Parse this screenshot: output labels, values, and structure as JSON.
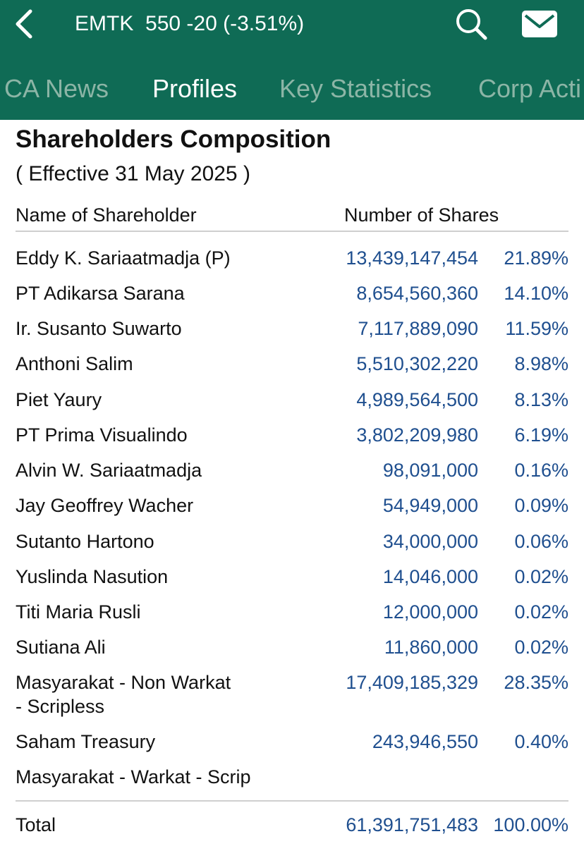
{
  "header": {
    "title": "EMTK  550 -20 (-3.51%)",
    "back_icon": "chevron-left-icon",
    "search_icon": "search-icon",
    "mail_icon": "mail-icon"
  },
  "tabs": [
    {
      "label": "CA News",
      "active": false
    },
    {
      "label": "Profiles",
      "active": true
    },
    {
      "label": "Key Statistics",
      "active": false
    },
    {
      "label": "Corp Acti",
      "active": false
    }
  ],
  "section": {
    "title": "Shareholders Composition",
    "effective": "( Effective 31 May 2025 )"
  },
  "columns": {
    "name": "Name of Shareholder",
    "shares": "Number of Shares"
  },
  "rows": [
    {
      "name": [
        "Eddy K. Sariaatmadja (P)"
      ],
      "shares": "13,439,147,454",
      "pct": "21.89%"
    },
    {
      "name": [
        "PT Adikarsa Sarana"
      ],
      "shares": "8,654,560,360",
      "pct": "14.10%"
    },
    {
      "name": [
        "Ir. Susanto Suwarto"
      ],
      "shares": "7,117,889,090",
      "pct": "11.59%"
    },
    {
      "name": [
        "Anthoni Salim"
      ],
      "shares": "5,510,302,220",
      "pct": "8.98%"
    },
    {
      "name": [
        "Piet Yaury"
      ],
      "shares": "4,989,564,500",
      "pct": "8.13%"
    },
    {
      "name": [
        "PT Prima Visualindo"
      ],
      "shares": "3,802,209,980",
      "pct": "6.19%"
    },
    {
      "name": [
        "Alvin W. Sariaatmadja"
      ],
      "shares": "98,091,000",
      "pct": "0.16%"
    },
    {
      "name": [
        "Jay Geoffrey Wacher"
      ],
      "shares": "54,949,000",
      "pct": "0.09%"
    },
    {
      "name": [
        "Sutanto Hartono"
      ],
      "shares": "34,000,000",
      "pct": "0.06%"
    },
    {
      "name": [
        "Yuslinda Nasution"
      ],
      "shares": "14,046,000",
      "pct": "0.02%"
    },
    {
      "name": [
        "Titi Maria Rusli"
      ],
      "shares": "12,000,000",
      "pct": "0.02%"
    },
    {
      "name": [
        "Sutiana Ali"
      ],
      "shares": "11,860,000",
      "pct": "0.02%"
    },
    {
      "name": [
        "Masyarakat - Non Warkat",
        "- Scripless"
      ],
      "shares": "17,409,185,329",
      "pct": "28.35%"
    },
    {
      "name": [
        "Saham Treasury"
      ],
      "shares": "243,946,550",
      "pct": "0.40%"
    },
    {
      "name": [
        "Masyarakat - Warkat - Scrip"
      ],
      "shares": "",
      "pct": ""
    }
  ],
  "total": {
    "label": "Total",
    "shares": "61,391,751,483",
    "pct": "100.00%"
  },
  "colors": {
    "header_bg": "#0f6b55",
    "tab_inactive": "#8cb5a6",
    "value_blue": "#1f4f8f"
  }
}
